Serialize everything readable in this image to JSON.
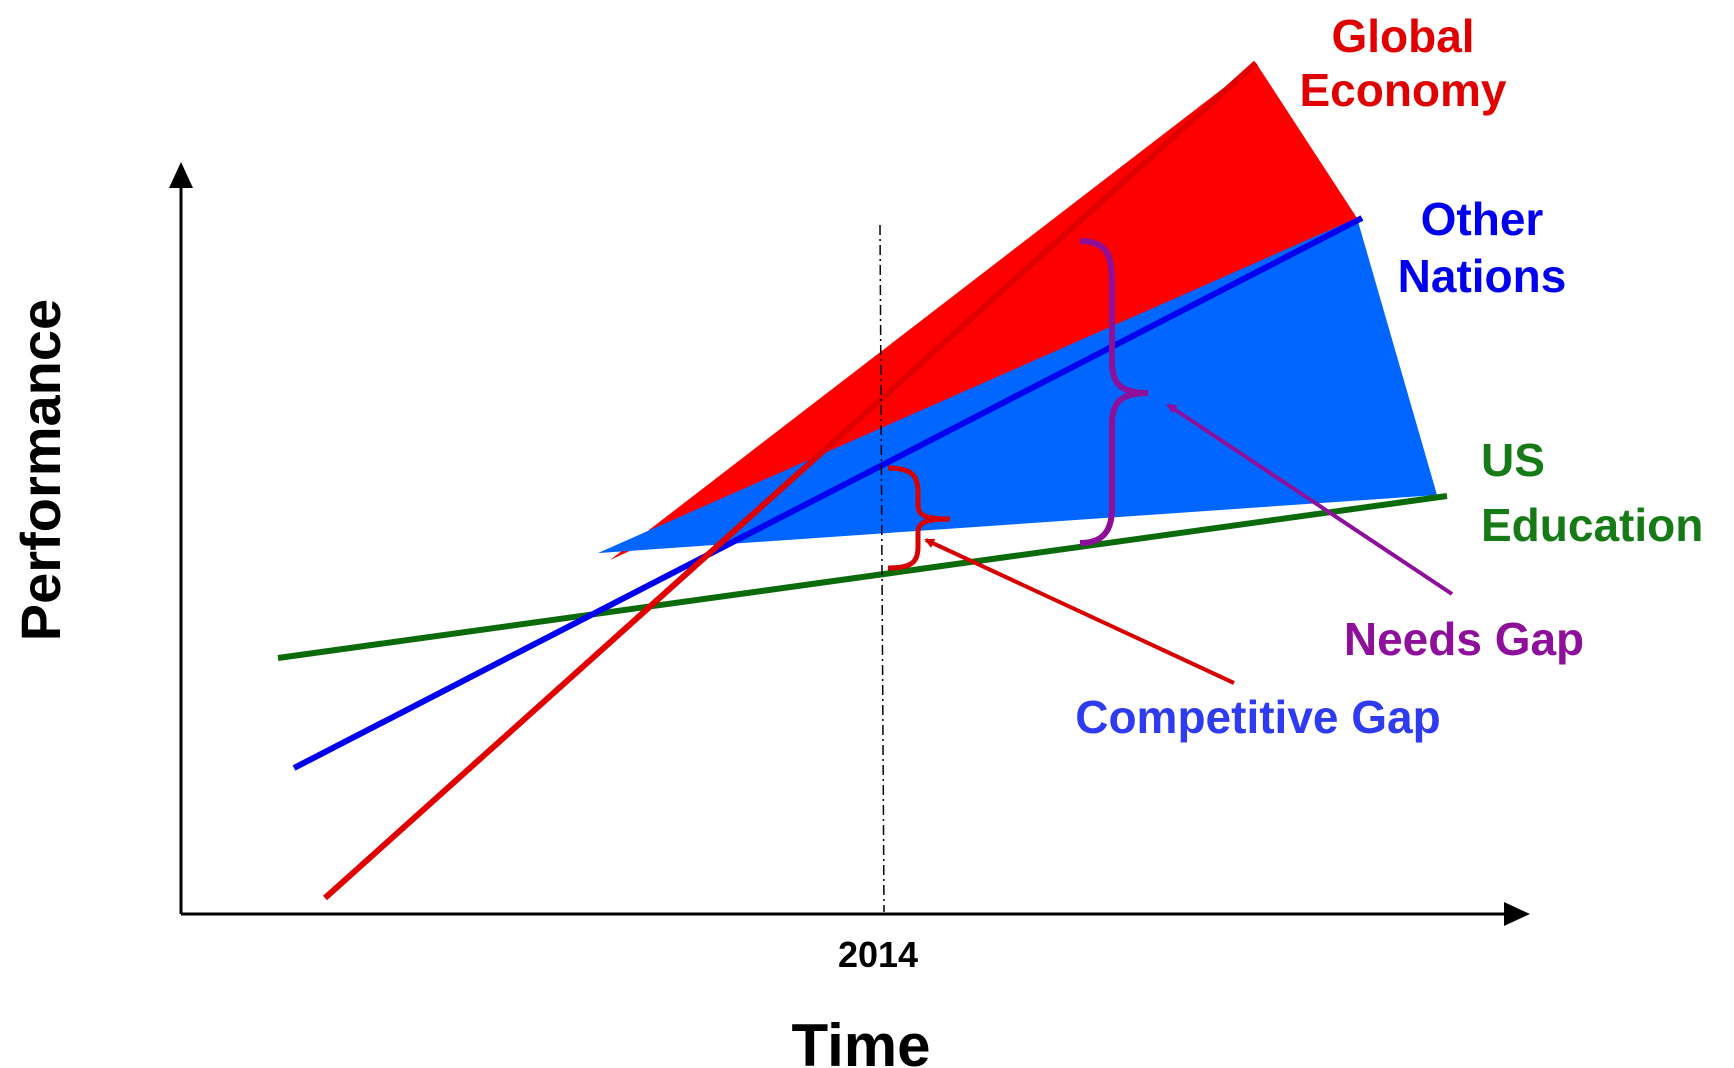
{
  "axes": {
    "x_label": "Time",
    "y_label": "Performance",
    "year_marker": "2014"
  },
  "series": {
    "global_economy": {
      "line1": "Global",
      "line2": "Economy",
      "color": "#e00000"
    },
    "other_nations": {
      "line1": "Other",
      "line2": "Nations",
      "color": "#0000ee"
    },
    "us_education": {
      "line1": "US",
      "line2": "Education",
      "color": "#167a16"
    }
  },
  "gaps": {
    "needs_gap": {
      "label": "Needs Gap",
      "color": "#8e0f9a"
    },
    "competitive_gap": {
      "label": "Competitive Gap",
      "color": "#2f3bf0"
    }
  },
  "fills": {
    "needs_area": "#ff0000",
    "competitive_area": "#0066ff"
  }
}
